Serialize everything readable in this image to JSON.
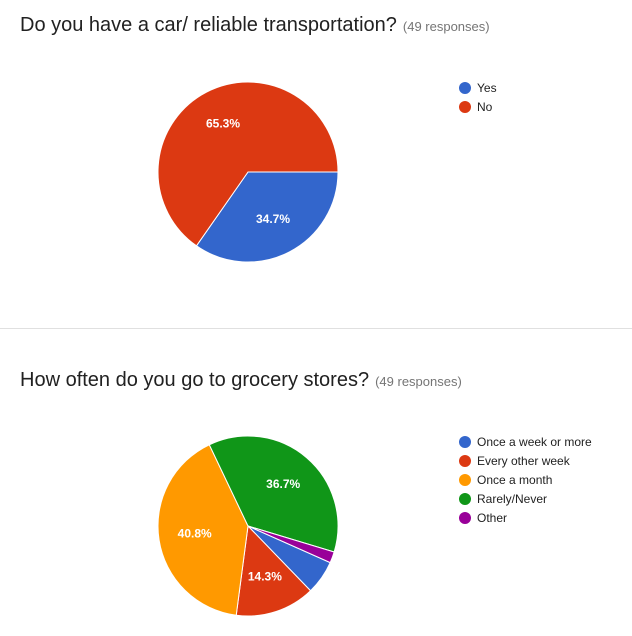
{
  "questions": [
    {
      "title": "Do you have a car/ reliable transportation?",
      "responses": "(49 responses)"
    },
    {
      "title": "How often do you go to grocery stores?",
      "responses": "(49 responses)"
    }
  ],
  "chart_data": [
    {
      "type": "pie",
      "title": "Do you have a car/ reliable transportation?",
      "categories": [
        "Yes",
        "No"
      ],
      "values": [
        34.7,
        65.3
      ],
      "labels": [
        "34.7%",
        "65.3%"
      ],
      "colors": [
        "#3366cc",
        "#dc3912"
      ],
      "legend": "right"
    },
    {
      "type": "pie",
      "title": "How often do you go to grocery stores?",
      "categories": [
        "Once a week or more",
        "Every other week",
        "Once a month",
        "Rarely/Never",
        "Other"
      ],
      "values": [
        6.1,
        14.3,
        40.8,
        36.7,
        2.0
      ],
      "labels": [
        "",
        "14.3%",
        "40.8%",
        "36.7%",
        ""
      ],
      "colors": [
        "#3366cc",
        "#dc3912",
        "#ff9900",
        "#109618",
        "#990099"
      ],
      "legend": "right"
    }
  ]
}
